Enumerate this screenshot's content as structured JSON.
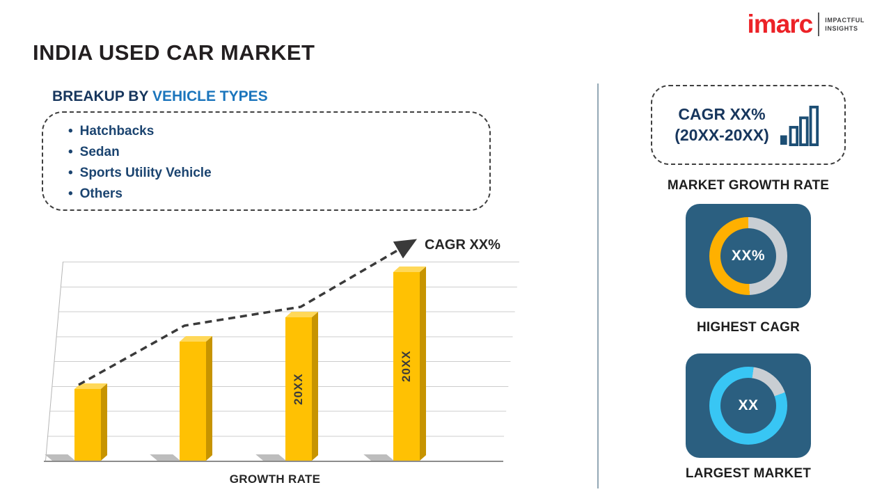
{
  "header": {
    "title": "INDIA USED CAR MARKET"
  },
  "logo": {
    "brand": "imarc",
    "tagline_line1": "IMPACTFUL",
    "tagline_line2": "INSIGHTS"
  },
  "breakup": {
    "heading_prefix": "BREAKUP BY ",
    "heading_highlight": "VEHICLE TYPES",
    "bullet": "•",
    "items": [
      "Hatchbacks",
      "Sedan",
      "Sports Utility Vehicle",
      "Others"
    ]
  },
  "chart_data": {
    "type": "bar",
    "categories": [
      "",
      "",
      "20XX",
      "20XX"
    ],
    "values": [
      38,
      63,
      76,
      100
    ],
    "title": "",
    "xlabel": "GROWTH RATE",
    "ylabel": "",
    "ylim": [
      0,
      100
    ],
    "grid": true,
    "bar_color": "#FFC103",
    "trend_annotation": "CAGR XX%",
    "trend_style": "dashed rising arrow"
  },
  "sidebar": {
    "growth_box": {
      "line1": "CAGR XX%",
      "line2": "(20XX-20XX)"
    },
    "market_growth_rate_label": "MARKET GROWTH RATE",
    "highest_cagr": {
      "value": "XX%",
      "label": "HIGHEST CAGR"
    },
    "largest_market": {
      "value": "XX",
      "label": "LARGEST MARKET"
    }
  },
  "colors": {
    "bar_gold": "#FFC103",
    "donut_gold": "#FFB000",
    "donut_cyan": "#38C6F4",
    "ring_gray": "#C9CED3",
    "card_blue": "#2B5F80",
    "brand_red": "#EC2227",
    "heading_blue": "#1B75BC",
    "navy_text": "#17365D"
  }
}
